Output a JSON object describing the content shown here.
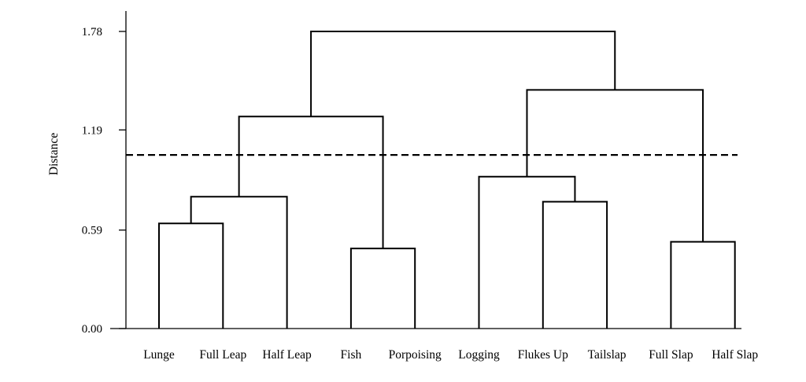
{
  "chart_data": {
    "type": "dendrogram",
    "ylabel": "Distance",
    "yticks": [
      "0.00",
      "0.59",
      "1.19",
      "1.78"
    ],
    "ylim": [
      0,
      1.78
    ],
    "leaves": [
      "Lunge",
      "Full Leap",
      "Half Leap",
      "Fish",
      "Porpoising",
      "Logging",
      "Flukes Up",
      "Tailslap",
      "Full Slap",
      "Half Slap"
    ],
    "merges": [
      {
        "left": 0,
        "right": 1,
        "height": 0.63
      },
      {
        "left": 10,
        "right": 2,
        "height": 0.79
      },
      {
        "left": 3,
        "right": 4,
        "height": 0.48
      },
      {
        "left": 11,
        "right": 12,
        "height": 1.27
      },
      {
        "left": 6,
        "right": 7,
        "height": 0.76
      },
      {
        "left": 5,
        "right": 14,
        "height": 0.91
      },
      {
        "left": 8,
        "right": 9,
        "height": 0.52
      },
      {
        "left": 15,
        "right": 16,
        "height": 1.43
      },
      {
        "left": 13,
        "right": 17,
        "height": 1.78
      }
    ],
    "cutoff_line": {
      "height": 1.04,
      "style": "dashed"
    },
    "grid": false
  }
}
